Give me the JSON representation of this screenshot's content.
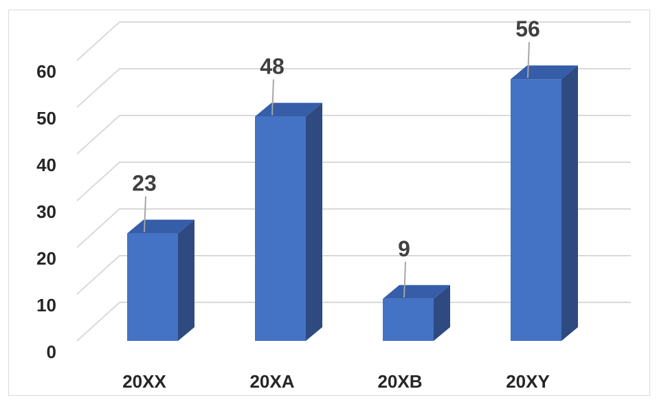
{
  "chart_data": {
    "type": "bar",
    "style": "3d-column",
    "categories": [
      "20XX",
      "20XA",
      "20XB",
      "20XY"
    ],
    "values": [
      23,
      48,
      9,
      56
    ],
    "ylim": [
      0,
      60
    ],
    "yticks": [
      0,
      10,
      20,
      30,
      40,
      50,
      60
    ],
    "ytick_labels": [
      "0",
      "10",
      "20",
      "30",
      "40",
      "50",
      "60"
    ],
    "grid": true,
    "legend": "none",
    "data_labels": [
      "23",
      "48",
      "9",
      "56"
    ],
    "colors": {
      "bar_front": "#4472c4",
      "bar_side": "#2e4a80",
      "bar_top": "#355da8",
      "grid": "#d9d9d9",
      "leader": "#a6a6a6"
    }
  }
}
